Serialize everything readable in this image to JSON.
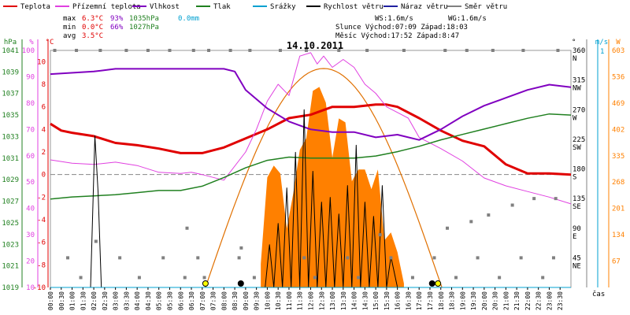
{
  "legend": [
    {
      "label": "Teplota",
      "color": "#e00000"
    },
    {
      "label": "Přízemní teplota",
      "color": "#e040e0"
    },
    {
      "label": "Vlhkost",
      "color": "#8000c0"
    },
    {
      "label": "Tlak",
      "color": "#208020"
    },
    {
      "label": "Srážky",
      "color": "#00a0d0"
    },
    {
      "label": "Rychlost větru",
      "color": "#000000"
    },
    {
      "label": "Náraz větru",
      "color": "#2020a0"
    },
    {
      "label": "Směr větru",
      "color": "#808080"
    }
  ],
  "stats": {
    "max": {
      "label": "max",
      "temp": "6.3°C",
      "hum": "93%",
      "press": "1035hPa",
      "rain": "0.0mm"
    },
    "min": {
      "label": "min",
      "temp": "0.0°C",
      "hum": "66%",
      "press": "1027hPa"
    },
    "avg": {
      "label": "avg",
      "temp": "3.5°C"
    }
  },
  "info": {
    "ws": "WS:1.6m/s",
    "wg": "WG:1.6m/s",
    "sun": "Slunce Východ:07:09  Západ:18:03",
    "moon": "Měsíc  Východ:17:52  Západ:8:47"
  },
  "chart_data": {
    "type": "line",
    "title": "14.10.2011",
    "xlabel": "čas",
    "x_ticks": [
      "00:00",
      "00:30",
      "01:00",
      "01:30",
      "02:00",
      "02:30",
      "03:00",
      "03:30",
      "04:00",
      "04:30",
      "05:00",
      "05:30",
      "06:00",
      "06:30",
      "07:00",
      "07:30",
      "08:00",
      "08:30",
      "09:00",
      "09:30",
      "10:00",
      "10:30",
      "11:00",
      "11:30",
      "12:00",
      "12:30",
      "13:00",
      "13:30",
      "14:00",
      "14:30",
      "15:00",
      "15:30",
      "16:00",
      "16:30",
      "17:00",
      "17:30",
      "18:00",
      "18:30",
      "19:00",
      "19:30",
      "20:00",
      "20:30",
      "21:00",
      "21:30",
      "22:00",
      "22:30",
      "23:00",
      "23:30"
    ],
    "axes": {
      "hpa": {
        "unit": "hPa",
        "ylim": [
          1019,
          1041
        ],
        "ticks": [
          "1041",
          "1039",
          "1037",
          "1035",
          "1033",
          "1031",
          "1029",
          "1027",
          "1025",
          "1023",
          "1021",
          "1019"
        ]
      },
      "pct": {
        "unit": "%",
        "ylim": [
          10,
          100
        ],
        "ticks": [
          "100",
          "90",
          "80",
          "70",
          "60",
          "50",
          "40",
          "30",
          "20",
          "10"
        ]
      },
      "degc": {
        "unit": "°C",
        "ylim": [
          -10,
          11
        ],
        "ticks": [
          "10",
          "8",
          "6",
          "4",
          "2",
          "0",
          "-2",
          "-4",
          "-6",
          "-8",
          "-10"
        ]
      },
      "dir": {
        "unit": "°",
        "ylim": [
          0,
          360
        ],
        "ticks": [
          {
            "deg": "360",
            "name": "N"
          },
          {
            "deg": "315",
            "name": "NW"
          },
          {
            "deg": "270",
            "name": "W"
          },
          {
            "deg": "225",
            "name": "SW"
          },
          {
            "deg": "180",
            "name": "S"
          },
          {
            "deg": "135",
            "name": "SE"
          },
          {
            "deg": "90",
            "name": "E"
          },
          {
            "deg": "45",
            "name": "NE"
          },
          {
            "deg": "",
            "name": ""
          }
        ]
      },
      "ms": {
        "unit": "m/s",
        "top_label": "1"
      },
      "wm2": {
        "unit": "W",
        "ylim": [
          0,
          603
        ],
        "ticks": [
          "603",
          "536",
          "469",
          "402",
          "335",
          "268",
          "201",
          "134",
          "67"
        ]
      }
    },
    "series": [
      {
        "name": "Teplota",
        "axis": "degc",
        "color": "#e00000",
        "x": [
          0,
          0.5,
          1,
          2,
          3,
          4,
          5,
          6,
          7,
          8,
          9,
          10,
          11,
          12,
          13,
          14,
          15,
          15.5,
          16,
          17,
          18,
          19,
          20,
          21,
          22,
          23,
          24
        ],
        "values": [
          4.5,
          3.9,
          3.7,
          3.4,
          2.8,
          2.6,
          2.3,
          1.9,
          1.9,
          2.4,
          3.2,
          4.0,
          5.0,
          5.3,
          6.0,
          6.0,
          6.2,
          6.2,
          6.0,
          5.0,
          3.9,
          3.0,
          2.5,
          0.9,
          0.1,
          0.1,
          0.0
        ]
      },
      {
        "name": "Přízemní teplota",
        "axis": "degc",
        "color": "#e040e0",
        "x": [
          0,
          1,
          2,
          3,
          4,
          5,
          6,
          6.5,
          7,
          8,
          9,
          9.5,
          10,
          10.5,
          11,
          11.5,
          12,
          12.3,
          12.6,
          13,
          13.5,
          14,
          14.5,
          15,
          15.5,
          16,
          16.5,
          17,
          18,
          19,
          20,
          21,
          22,
          23,
          24
        ],
        "values": [
          1.3,
          1.0,
          0.9,
          1.1,
          0.8,
          0.2,
          0.1,
          0.2,
          0.0,
          -0.5,
          2.0,
          4.0,
          6.5,
          8.0,
          7.0,
          10.5,
          10.8,
          9.8,
          10.5,
          9.5,
          10.2,
          9.5,
          8.0,
          7.2,
          6.0,
          5.5,
          5.0,
          3.3,
          2.3,
          1.2,
          -0.3,
          -1.0,
          -1.5,
          -2.0,
          -2.6
        ]
      },
      {
        "name": "Vlhkost",
        "axis": "pct",
        "color": "#8000c0",
        "x": [
          0,
          2,
          3,
          4,
          5,
          6,
          7,
          8,
          8.5,
          9,
          10,
          11,
          12,
          13,
          14,
          15,
          16,
          17,
          18,
          19,
          20,
          21,
          22,
          23,
          24
        ],
        "values": [
          91,
          92,
          93,
          93,
          93,
          93,
          93,
          93,
          92,
          85,
          78,
          73,
          70,
          69,
          69,
          67,
          68,
          66,
          70,
          75,
          79,
          82,
          85,
          87,
          86
        ]
      },
      {
        "name": "Tlak",
        "axis": "hpa",
        "color": "#208020",
        "x": [
          0,
          1,
          2,
          3,
          4,
          5,
          6,
          7,
          8,
          9,
          10,
          11,
          12,
          13,
          14,
          15,
          16,
          17,
          18,
          19,
          20,
          21,
          22,
          23,
          24
        ],
        "values": [
          1027.2,
          1027.4,
          1027.5,
          1027.6,
          1027.8,
          1028.0,
          1028.0,
          1028.4,
          1029.2,
          1030.1,
          1030.8,
          1031.1,
          1031.0,
          1031.0,
          1031.0,
          1031.2,
          1031.6,
          1032.1,
          1032.7,
          1033.2,
          1033.7,
          1034.2,
          1034.7,
          1035.1,
          1035.0
        ]
      },
      {
        "name": "Rychlost větru",
        "axis": "ms",
        "color": "#000000",
        "x": [
          0,
          1.85,
          2.05,
          2.2,
          2.35,
          3,
          9.9,
          10.1,
          10.3,
          10.5,
          10.7,
          10.9,
          11.1,
          11.3,
          11.5,
          11.7,
          11.9,
          12.1,
          12.3,
          12.5,
          12.7,
          12.9,
          13.1,
          13.3,
          13.5,
          13.7,
          13.9,
          14.1,
          14.3,
          14.5,
          14.7,
          14.9,
          15.1,
          15.3,
          15.5,
          15.7,
          16,
          24
        ],
        "values": [
          0,
          0,
          0.64,
          0.4,
          0,
          0,
          0,
          0.18,
          0,
          0.27,
          0,
          0.42,
          0,
          0.57,
          0,
          0.75,
          0,
          0.49,
          0,
          0.36,
          0,
          0.38,
          0,
          0.31,
          0,
          0.43,
          0,
          0.6,
          0,
          0.36,
          0,
          0.3,
          0,
          0.43,
          0,
          0.13,
          0,
          0
        ]
      },
      {
        "name": "Srážky",
        "axis": "ms",
        "color": "#00a0d0",
        "x": [
          0,
          24
        ],
        "values": [
          0,
          0
        ]
      }
    ],
    "solar_radiation": {
      "name": "sluneční záření",
      "axis": "wm2",
      "color": "#ff8000",
      "x": [
        9.7,
        10,
        10.3,
        10.6,
        10.9,
        11.2,
        11.5,
        11.8,
        12.1,
        12.4,
        12.7,
        13,
        13.3,
        13.6,
        13.9,
        14.2,
        14.5,
        14.8,
        15.1,
        15.4,
        15.7,
        16,
        16.3
      ],
      "values": [
        60,
        280,
        310,
        290,
        150,
        240,
        350,
        380,
        500,
        510,
        470,
        330,
        430,
        420,
        270,
        300,
        300,
        250,
        300,
        120,
        140,
        90,
        10
      ]
    },
    "theoretical_solar": {
      "color": "#e07000",
      "sunrise": 7.15,
      "sunset": 18.05,
      "peak": 557
    },
    "wind_direction": {
      "name": "Směr větru",
      "axis": "dir",
      "color": "#808080",
      "x": [
        0.2,
        1.2,
        2.3,
        3.5,
        4.5,
        5.5,
        6.6,
        7.3,
        8.3,
        9.2,
        10.6,
        11.8,
        13.3,
        14.6,
        16.3,
        18.2,
        19.2,
        20.4,
        21.8,
        23.4,
        0.8,
        3.2,
        5.2,
        6.8,
        8.7,
        11.7,
        13.7,
        15.7,
        17.7,
        19.7,
        21.7,
        23.2,
        1.4,
        4.1,
        6.2,
        7.1,
        9.4,
        12.2,
        14.2,
        16.7,
        18.7,
        20.7,
        22.7,
        2.1,
        6.3,
        8.8,
        15.2,
        18.3,
        19.4,
        20.2,
        21.3,
        22.3,
        23.3
      ],
      "values": [
        360,
        360,
        360,
        360,
        360,
        360,
        360,
        360,
        360,
        360,
        360,
        360,
        360,
        360,
        360,
        360,
        360,
        360,
        360,
        360,
        45,
        45,
        45,
        45,
        45,
        45,
        45,
        45,
        45,
        45,
        45,
        45,
        15,
        15,
        15,
        15,
        15,
        15,
        15,
        15,
        15,
        15,
        15,
        70,
        90,
        60,
        80,
        90,
        100,
        110,
        125,
        135,
        135
      ]
    },
    "markers": [
      {
        "type": "sunrise",
        "x": 7.15,
        "color": "#ffff00"
      },
      {
        "type": "moonrise",
        "x": 17.87,
        "color": "#ffff00"
      },
      {
        "type": "moonset",
        "x": 8.78,
        "color": "#000000"
      },
      {
        "type": "moon",
        "x": 17.6,
        "color": "#000000"
      }
    ]
  }
}
